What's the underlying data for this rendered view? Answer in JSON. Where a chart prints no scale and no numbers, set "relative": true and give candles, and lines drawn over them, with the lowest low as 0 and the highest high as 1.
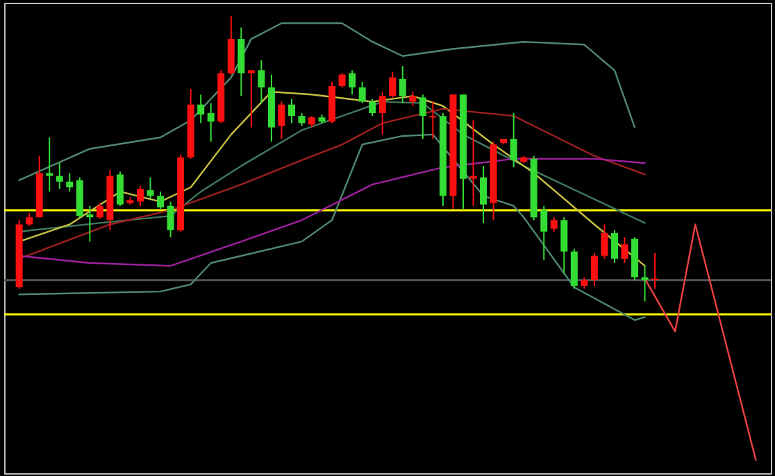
{
  "chart_data": {
    "type": "candlestick",
    "relative": true,
    "categories": [
      null,
      null,
      null,
      null,
      null,
      null,
      null,
      null,
      null,
      null,
      null,
      null,
      null,
      null,
      null,
      null,
      null,
      null,
      null,
      null,
      null,
      null,
      null,
      null,
      null,
      null,
      null,
      null,
      null,
      null,
      null,
      null,
      null,
      null,
      null,
      null,
      null,
      null,
      null,
      null,
      null,
      null,
      null,
      null,
      null,
      null,
      null,
      null,
      null,
      null,
      null,
      null,
      null,
      null,
      null,
      null,
      null,
      null,
      null,
      null,
      null,
      null,
      null,
      null,
      null,
      null,
      null,
      null,
      null,
      null,
      null,
      null,
      null,
      null
    ],
    "ohlc": [
      [
        0.05,
        0.285,
        0.045,
        0.27
      ],
      [
        0.27,
        0.31,
        0.265,
        0.295
      ],
      [
        0.295,
        0.51,
        0.295,
        0.45
      ],
      [
        0.45,
        0.575,
        0.385,
        0.44
      ],
      [
        0.44,
        0.485,
        0.395,
        0.42
      ],
      [
        0.42,
        0.45,
        0.385,
        0.4
      ],
      [
        0.425,
        0.435,
        0.295,
        0.3
      ],
      [
        0.305,
        0.335,
        0.21,
        0.295
      ],
      [
        0.295,
        0.345,
        0.29,
        0.335
      ],
      [
        0.285,
        0.46,
        0.25,
        0.44
      ],
      [
        0.445,
        0.455,
        0.335,
        0.34
      ],
      [
        0.345,
        0.365,
        0.34,
        0.355
      ],
      [
        0.35,
        0.405,
        0.335,
        0.395
      ],
      [
        0.39,
        0.435,
        0.36,
        0.37
      ],
      [
        0.37,
        0.385,
        0.325,
        0.33
      ],
      [
        0.335,
        0.35,
        0.225,
        0.25
      ],
      [
        0.25,
        0.515,
        0.245,
        0.505
      ],
      [
        0.505,
        0.745,
        0.5,
        0.69
      ],
      [
        0.69,
        0.725,
        0.625,
        0.655
      ],
      [
        0.66,
        0.695,
        0.56,
        0.63
      ],
      [
        0.63,
        0.81,
        0.625,
        0.8
      ],
      [
        0.8,
        1.0,
        0.795,
        0.92
      ],
      [
        0.92,
        0.96,
        0.72,
        0.8
      ],
      [
        0.8,
        0.81,
        0.61,
        0.81
      ],
      [
        0.81,
        0.845,
        0.695,
        0.75
      ],
      [
        0.75,
        0.795,
        0.56,
        0.61
      ],
      [
        0.615,
        0.7,
        0.57,
        0.69
      ],
      [
        0.69,
        0.71,
        0.625,
        0.65
      ],
      [
        0.65,
        0.66,
        0.615,
        0.625
      ],
      [
        0.62,
        0.65,
        0.61,
        0.645
      ],
      [
        0.645,
        0.655,
        0.625,
        0.63
      ],
      [
        0.63,
        0.77,
        0.625,
        0.755
      ],
      [
        0.755,
        0.8,
        0.75,
        0.795
      ],
      [
        0.8,
        0.81,
        0.725,
        0.75
      ],
      [
        0.75,
        0.77,
        0.695,
        0.7
      ],
      [
        0.7,
        0.71,
        0.65,
        0.66
      ],
      [
        0.66,
        0.735,
        0.585,
        0.72
      ],
      [
        0.72,
        0.805,
        0.715,
        0.785
      ],
      [
        0.78,
        0.825,
        0.695,
        0.72
      ],
      [
        0.7,
        0.735,
        0.685,
        0.72
      ],
      [
        0.715,
        0.725,
        0.57,
        0.65
      ],
      [
        0.645,
        0.7,
        0.57,
        0.65
      ],
      [
        0.65,
        0.66,
        0.335,
        0.37
      ],
      [
        0.37,
        0.725,
        0.325,
        0.725
      ],
      [
        0.725,
        0.725,
        0.325,
        0.43
      ],
      [
        0.43,
        0.635,
        0.335,
        0.44
      ],
      [
        0.435,
        0.475,
        0.275,
        0.34
      ],
      [
        0.345,
        0.56,
        0.285,
        0.55
      ],
      [
        0.555,
        0.57,
        0.55,
        0.57
      ],
      [
        0.57,
        0.66,
        0.47,
        0.495
      ],
      [
        0.49,
        0.51,
        0.485,
        0.505
      ],
      [
        0.5,
        0.51,
        0.285,
        0.295
      ],
      [
        0.32,
        0.335,
        0.145,
        0.245
      ],
      [
        0.255,
        0.295,
        0.245,
        0.285
      ],
      [
        0.285,
        0.295,
        0.1,
        0.175
      ],
      [
        0.175,
        0.185,
        0.045,
        0.055
      ],
      [
        0.055,
        0.085,
        0.045,
        0.075
      ],
      [
        0.075,
        0.17,
        0.055,
        0.16
      ],
      [
        0.16,
        0.27,
        0.15,
        0.24
      ],
      [
        0.24,
        0.25,
        0.135,
        0.15
      ],
      [
        0.15,
        0.225,
        0.135,
        0.2
      ],
      [
        0.22,
        0.225,
        0.075,
        0.085
      ],
      [
        0.085,
        0.125,
        0.0,
        0.075
      ],
      [
        0.075,
        0.17,
        0.045,
        0.08
      ],
      null,
      null,
      null,
      null,
      null,
      null,
      null,
      null,
      null,
      null
    ],
    "colors": [
      "#ff1010",
      "#ff1010",
      "#ff1010",
      "#33dd33",
      "#33dd33",
      "#33dd33",
      "#33dd33",
      "#33dd33",
      "#ff1010",
      "#ff1010",
      "#33dd33",
      "#ff1010",
      "#ff1010",
      "#33dd33",
      "#33dd33",
      "#33dd33",
      "#ff1010",
      "#ff1010",
      "#33dd33",
      "#33dd33",
      "#ff1010",
      "#ff1010",
      "#33dd33",
      "#ff1010",
      "#33dd33",
      "#33dd33",
      "#ff1010",
      "#33dd33",
      "#33dd33",
      "#ff1010",
      "#33dd33",
      "#ff1010",
      "#ff1010",
      "#33dd33",
      "#33dd33",
      "#33dd33",
      "#ff1010",
      "#ff1010",
      "#33dd33",
      "#ff1010",
      "#33dd33",
      "#ff1010",
      "#33dd33",
      "#ff1010",
      "#33dd33",
      "#ff1010",
      "#33dd33",
      "#ff1010",
      "#ff1010",
      "#33dd33",
      "#ff1010",
      "#33dd33",
      "#33dd33",
      "#ff1010",
      "#33dd33",
      "#33dd33",
      "#ff1010",
      "#ff1010",
      "#ff1010",
      "#33dd33",
      "#ff1010",
      "#33dd33",
      "#33dd33",
      "#ff1010",
      null,
      null,
      null,
      null,
      null,
      null,
      null,
      null,
      null,
      null
    ],
    "series": [
      {
        "type": "line",
        "color": "#4f8a6e",
        "values": [
          0.425,
          null,
          null,
          null,
          null,
          null,
          null,
          0.535,
          null,
          null,
          null,
          null,
          null,
          null,
          0.575,
          null,
          null,
          0.635,
          null,
          null,
          null,
          0.785,
          null,
          0.92,
          null,
          null,
          0.975,
          null,
          null,
          null,
          null,
          null,
          0.975,
          null,
          null,
          0.91,
          null,
          null,
          0.86,
          null,
          null,
          null,
          null,
          0.885,
          null,
          null,
          null,
          null,
          null,
          null,
          0.91,
          null,
          null,
          null,
          null,
          null,
          0.9,
          null,
          null,
          0.81,
          null,
          0.61,
          null,
          null,
          null,
          null,
          null,
          null,
          null,
          null,
          null,
          null,
          null,
          null
        ]
      },
      {
        "type": "line",
        "color": "#4f8a6e",
        "values": [
          0.025,
          null,
          null,
          null,
          null,
          null,
          null,
          null,
          null,
          null,
          null,
          null,
          null,
          null,
          0.035,
          null,
          null,
          0.06,
          null,
          0.135,
          null,
          null,
          0.16,
          null,
          null,
          null,
          null,
          null,
          0.21,
          null,
          null,
          0.285,
          null,
          null,
          0.55,
          null,
          null,
          null,
          0.58,
          null,
          null,
          0.585,
          null,
          null,
          null,
          null,
          0.37,
          null,
          null,
          0.335,
          0.295,
          null,
          null,
          null,
          null,
          0.05,
          null,
          null,
          null,
          null,
          null,
          -0.065,
          -0.055,
          null,
          null,
          null,
          null,
          null,
          null,
          null,
          null,
          null,
          null,
          null
        ]
      },
      {
        "type": "line",
        "color": "#3f7a5c",
        "values": [
          0.245,
          null,
          null,
          null,
          null,
          null,
          null,
          null,
          0.275,
          null,
          null,
          null,
          null,
          null,
          null,
          0.3,
          null,
          null,
          0.385,
          null,
          null,
          null,
          0.475,
          null,
          null,
          null,
          null,
          null,
          0.6,
          null,
          null,
          null,
          null,
          null,
          null,
          null,
          0.7,
          null,
          null,
          null,
          0.695,
          null,
          null,
          null,
          0.585,
          null,
          null,
          null,
          null,
          null,
          0.475,
          null,
          null,
          null,
          null,
          null,
          null,
          null,
          null,
          null,
          null,
          null,
          0.275,
          null,
          null,
          null,
          null,
          null,
          null,
          null,
          null,
          null,
          null,
          null
        ]
      },
      {
        "type": "line",
        "color": "#c8c040",
        "values": [
          0.21,
          null,
          null,
          null,
          null,
          0.27,
          null,
          null,
          null,
          null,
          0.385,
          null,
          null,
          null,
          0.35,
          null,
          null,
          0.4,
          null,
          null,
          null,
          0.585,
          null,
          null,
          null,
          0.735,
          null,
          null,
          null,
          0.725,
          null,
          null,
          null,
          null,
          null,
          0.7,
          null,
          null,
          null,
          0.72,
          null,
          null,
          0.685,
          null,
          null,
          null,
          null,
          0.55,
          null,
          null,
          null,
          0.45,
          null,
          null,
          null,
          null,
          null,
          0.27,
          null,
          null,
          null,
          null,
          0.125,
          null,
          null,
          null,
          null,
          null,
          null,
          null,
          null,
          null,
          null,
          null
        ]
      },
      {
        "type": "line",
        "color": "#a02020",
        "values": [
          0.15,
          null,
          null,
          null,
          null,
          null,
          null,
          null,
          null,
          0.27,
          null,
          null,
          null,
          null,
          null,
          0.32,
          null,
          null,
          null,
          null,
          null,
          null,
          0.41,
          null,
          null,
          null,
          null,
          null,
          0.495,
          null,
          null,
          null,
          0.55,
          null,
          null,
          null,
          0.625,
          null,
          null,
          null,
          null,
          null,
          0.675,
          null,
          null,
          null,
          null,
          null,
          null,
          0.65,
          null,
          null,
          null,
          null,
          null,
          null,
          null,
          0.51,
          null,
          null,
          null,
          null,
          0.445,
          null,
          null,
          null,
          null,
          null,
          null,
          null,
          null,
          null,
          null,
          null
        ]
      },
      {
        "type": "line",
        "color": "#a020a0",
        "values": [
          0.16,
          null,
          null,
          null,
          null,
          null,
          null,
          0.135,
          null,
          null,
          null,
          null,
          null,
          null,
          null,
          0.125,
          null,
          null,
          null,
          null,
          null,
          null,
          0.21,
          null,
          null,
          null,
          null,
          null,
          0.285,
          null,
          null,
          null,
          null,
          null,
          null,
          0.41,
          null,
          null,
          null,
          null,
          null,
          null,
          0.47,
          null,
          null,
          null,
          null,
          null,
          null,
          0.5,
          null,
          null,
          null,
          null,
          null,
          null,
          null,
          0.5,
          null,
          null,
          null,
          null,
          0.485,
          null,
          null,
          null,
          null,
          null,
          null,
          null,
          null,
          null,
          null,
          null
        ]
      },
      {
        "type": "line",
        "color": "#ee4040",
        "values": [
          null,
          null,
          null,
          null,
          null,
          null,
          null,
          null,
          null,
          null,
          null,
          null,
          null,
          null,
          null,
          null,
          null,
          null,
          null,
          null,
          null,
          null,
          null,
          null,
          null,
          null,
          null,
          null,
          null,
          null,
          null,
          null,
          null,
          null,
          null,
          null,
          null,
          null,
          null,
          null,
          null,
          null,
          null,
          null,
          null,
          null,
          null,
          null,
          null,
          null,
          null,
          null,
          null,
          null,
          null,
          null,
          null,
          null,
          null,
          null,
          null,
          null,
          0.08,
          null,
          null,
          -0.105,
          null,
          0.27,
          null,
          null,
          null,
          null,
          null,
          -0.555
        ]
      }
    ],
    "ref_lines": [
      {
        "axis": "y",
        "value": 0.32,
        "color": "#ffff00"
      },
      {
        "axis": "y",
        "value": -0.045,
        "color": "#ffff00"
      },
      {
        "axis": "y",
        "value": 0.075,
        "color": "#555555"
      }
    ]
  }
}
